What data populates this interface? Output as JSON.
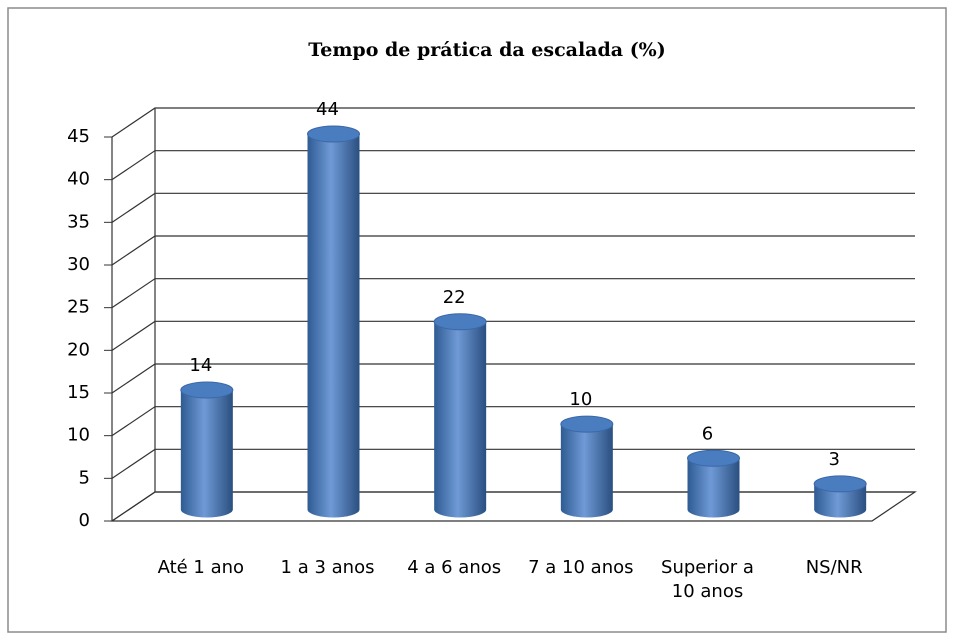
{
  "chart_data": {
    "type": "bar",
    "title": "Tempo de prática da escalada (%)",
    "categories": [
      "Até 1 ano",
      "1 a 3 anos",
      "4 a 6 anos",
      "7 a 10 anos",
      "Superior a 10 anos",
      "NS/NR"
    ],
    "values": [
      14,
      44,
      22,
      10,
      6,
      3
    ],
    "color": "#4f81bd",
    "ylim": [
      0,
      45
    ],
    "yticks": [
      0,
      5,
      10,
      15,
      20,
      25,
      30,
      35,
      40,
      45
    ],
    "grid": true
  }
}
